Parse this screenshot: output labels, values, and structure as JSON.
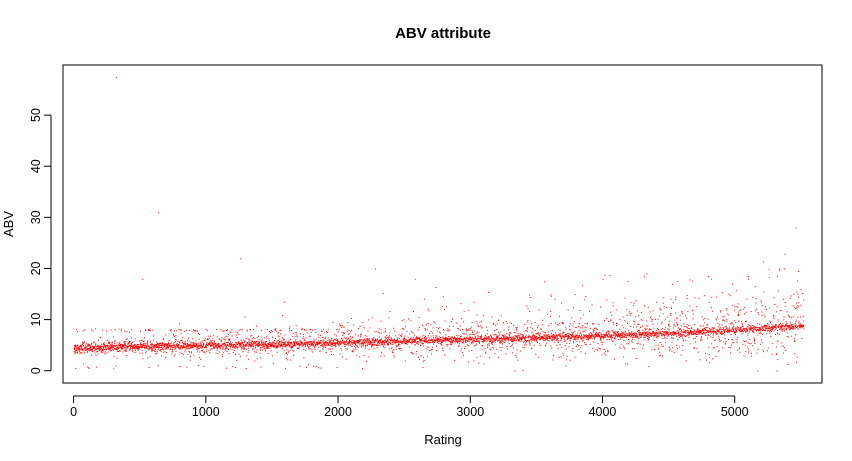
{
  "chart_data": {
    "type": "scatter",
    "title": "ABV attribute",
    "xlabel": "Rating",
    "ylabel": "ABV",
    "xlim": [
      -80,
      5660
    ],
    "ylim": [
      -2.4,
      59.8
    ],
    "x_ticks": [
      0,
      1000,
      2000,
      3000,
      4000,
      5000
    ],
    "y_ticks": [
      0,
      10,
      20,
      30,
      40,
      50
    ],
    "x_tick_labels": [
      "0",
      "1000",
      "2000",
      "3000",
      "4000",
      "5000"
    ],
    "y_tick_labels": [
      "0",
      "10",
      "20",
      "30",
      "40",
      "50"
    ],
    "grid": false,
    "legend": "none",
    "point_color": "#ff0000",
    "n_points": 5520,
    "series": [
      {
        "outliers": [
          {
            "x": 320,
            "y": 57.5
          },
          {
            "x": 640,
            "y": 31
          },
          {
            "x": 1260,
            "y": 22
          },
          {
            "x": 2280,
            "y": 20
          },
          {
            "x": 5460,
            "y": 28
          },
          {
            "x": 5480,
            "y": 19.5
          },
          {
            "x": 520,
            "y": 18
          },
          {
            "x": 1590,
            "y": 13.5
          },
          {
            "x": 4000,
            "y": 18
          },
          {
            "x": 4820,
            "y": 18
          },
          {
            "x": 5100,
            "y": 18
          },
          {
            "x": 5320,
            "y": 18.5
          },
          {
            "x": 4980,
            "y": 17
          },
          {
            "x": 2580,
            "y": 18
          },
          {
            "x": 3790,
            "y": 15
          }
        ],
        "trend": {
          "description_points": [
            {
              "x": 0,
              "median": 4.5
            },
            {
              "x": 500,
              "median": 4.8
            },
            {
              "x": 1000,
              "median": 5.0
            },
            {
              "x": 1500,
              "median": 5.2
            },
            {
              "x": 2000,
              "median": 5.5
            },
            {
              "x": 2500,
              "median": 5.9
            },
            {
              "x": 3000,
              "median": 6.2
            },
            {
              "x": 3500,
              "median": 6.5
            },
            {
              "x": 4000,
              "median": 6.9
            },
            {
              "x": 4500,
              "median": 7.4
            },
            {
              "x": 5000,
              "median": 8.0
            },
            {
              "x": 5500,
              "median": 8.8
            }
          ]
        }
      }
    ]
  }
}
